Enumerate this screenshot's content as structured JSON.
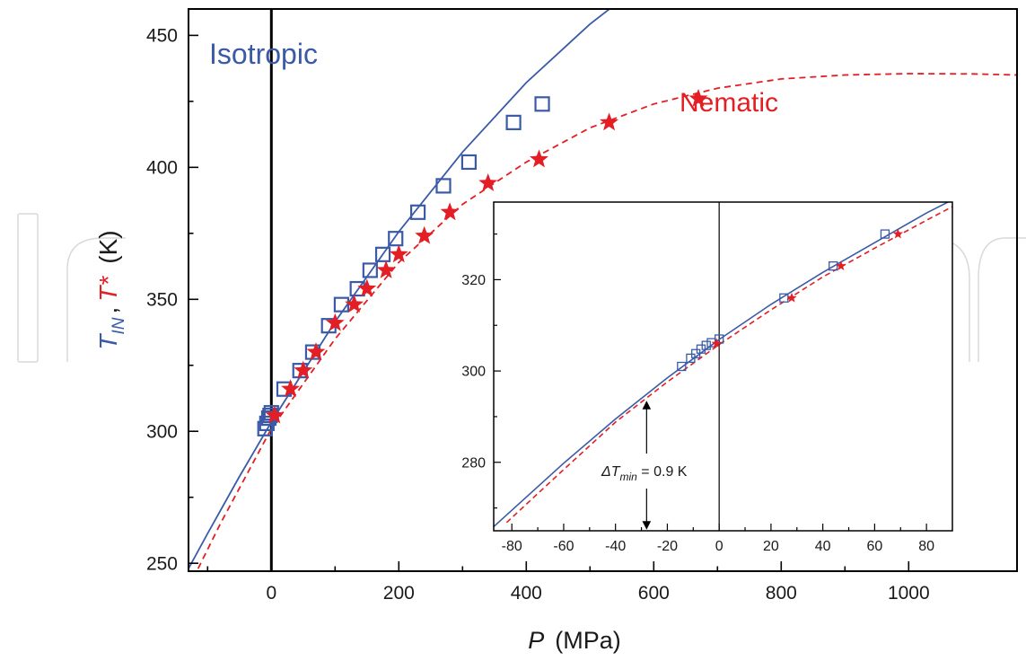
{
  "chart_data": [
    {
      "type": "scatter",
      "xlabel": "P",
      "xlabel_unit": "(MPa)",
      "ylabel_parts": [
        {
          "text": "T",
          "sub": "IN",
          "color": "#3a5aa8"
        },
        {
          "text": ",",
          "color": "#1a1a1a"
        },
        {
          "text": "T*",
          "color": "#e31e24"
        },
        {
          "text": "(K)",
          "color": "#1a1a1a"
        }
      ],
      "xlim": [
        -130,
        1170
      ],
      "ylim": [
        247,
        460
      ],
      "x_ticks": [
        0,
        200,
        400,
        600,
        800,
        1000
      ],
      "y_ticks": [
        250,
        300,
        350,
        400,
        450
      ],
      "series": [
        {
          "name": "Isotropic",
          "color": "#3a5aa8",
          "marker": "square",
          "points": [
            [
              -10,
              301
            ],
            [
              -7,
              303
            ],
            [
              -4,
              305
            ],
            [
              -2,
              306
            ],
            [
              0,
              307
            ],
            [
              20,
              316
            ],
            [
              45,
              323
            ],
            [
              65,
              330
            ],
            [
              90,
              340
            ],
            [
              110,
              348
            ],
            [
              135,
              354
            ],
            [
              155,
              361
            ],
            [
              175,
              367
            ],
            [
              195,
              373
            ],
            [
              230,
              383
            ],
            [
              270,
              393
            ],
            [
              310,
              402
            ],
            [
              380,
              417
            ],
            [
              425,
              424
            ]
          ],
          "fit": [
            [
              -130,
              248
            ],
            [
              -100,
              261.3
            ],
            [
              -50,
              282.9
            ],
            [
              0,
              303.5
            ],
            [
              100,
              341.5
            ],
            [
              200,
              375.6
            ],
            [
              300,
              405.8
            ],
            [
              400,
              432.1
            ],
            [
              500,
              454.3
            ],
            [
              575,
              468.3
            ]
          ]
        },
        {
          "name": "Nematic",
          "color": "#e31e24",
          "marker": "star",
          "points": [
            [
              5,
              306
            ],
            [
              30,
              316
            ],
            [
              50,
              323
            ],
            [
              70,
              330
            ],
            [
              100,
              341
            ],
            [
              130,
              348
            ],
            [
              150,
              354
            ],
            [
              180,
              361
            ],
            [
              200,
              367
            ],
            [
              240,
              374
            ],
            [
              280,
              383
            ],
            [
              340,
              394
            ],
            [
              420,
              403
            ],
            [
              530,
              417
            ],
            [
              670,
              426
            ]
          ],
          "fit": [
            [
              -115,
              248
            ],
            [
              -80,
              265
            ],
            [
              -40,
              283
            ],
            [
              0,
              301
            ],
            [
              100,
              335
            ],
            [
              200,
              364
            ],
            [
              300,
              386
            ],
            [
              400,
              402
            ],
            [
              500,
              415
            ],
            [
              600,
              424
            ],
            [
              700,
              430
            ],
            [
              800,
              433.5
            ],
            [
              900,
              435
            ],
            [
              1000,
              435.5
            ],
            [
              1100,
              435.4
            ],
            [
              1170,
              435
            ]
          ]
        }
      ],
      "annotations": [
        {
          "text": "Isotropic",
          "color": "#3a5aa8"
        },
        {
          "text": "Nematic",
          "color": "#e31e24"
        }
      ],
      "vertical_line_at": 0
    },
    {
      "type": "scatter",
      "xlim": [
        -87,
        90
      ],
      "ylim": [
        265,
        337
      ],
      "x_ticks": [
        -80,
        -60,
        -40,
        -20,
        0,
        20,
        40,
        60,
        80
      ],
      "y_ticks": [
        280,
        300,
        320
      ],
      "series": [
        {
          "name": "Isotropic",
          "color": "#3a5aa8",
          "marker": "square",
          "points": [
            [
              -14.5,
              301
            ],
            [
              -11,
              302.8
            ],
            [
              -9,
              303.8
            ],
            [
              -7,
              304.8
            ],
            [
              -5,
              305.6
            ],
            [
              -3,
              306.2
            ],
            [
              0,
              307
            ],
            [
              25,
              316
            ],
            [
              44,
              323
            ],
            [
              64,
              330
            ]
          ],
          "fit": [
            [
              -87,
              265.9
            ],
            [
              -60,
              279.8
            ],
            [
              -40,
              289.5
            ],
            [
              -20,
              298.5
            ],
            [
              0,
              306.9
            ],
            [
              20,
              314.6
            ],
            [
              40,
              321.6
            ],
            [
              60,
              328.1
            ],
            [
              80,
              334.6
            ],
            [
              90,
              337.5
            ]
          ]
        },
        {
          "name": "Nematic",
          "color": "#e31e24",
          "marker": "star",
          "points": [
            [
              -1,
              306
            ],
            [
              28,
              316
            ],
            [
              47,
              323
            ],
            [
              69,
              330
            ]
          ],
          "fit": [
            [
              -82,
              266.8
            ],
            [
              -60,
              278.4
            ],
            [
              -40,
              288.8
            ],
            [
              -20,
              297.6
            ],
            [
              0,
              305.8
            ],
            [
              20,
              313.4
            ],
            [
              40,
              320.6
            ],
            [
              60,
              326.9
            ],
            [
              80,
              333
            ],
            [
              90,
              336
            ]
          ]
        }
      ],
      "vertical_line_at": 0,
      "annotation": {
        "prefix": "ΔT",
        "sub": "min",
        "suffix": " = 0.9 K",
        "x": -28
      }
    }
  ]
}
